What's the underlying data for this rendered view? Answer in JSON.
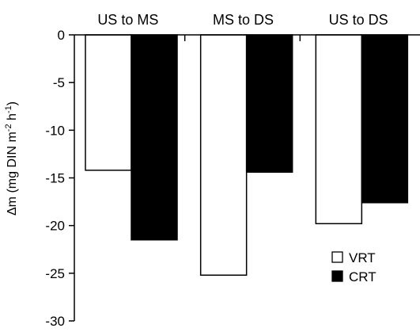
{
  "chart_data": {
    "type": "bar",
    "categories": [
      "US to MS",
      "MS to DS",
      "US to DS"
    ],
    "series": [
      {
        "name": "VRT",
        "values": [
          -14.2,
          -25.2,
          -19.8
        ],
        "color": "#ffffff"
      },
      {
        "name": "CRT",
        "values": [
          -21.5,
          -14.4,
          -17.6
        ],
        "color": "#000000"
      }
    ],
    "ylabel": {
      "base": "Δm (mg DIN m",
      "sup1": "-2",
      "mid": " h",
      "sup2": "-1",
      "end": ")"
    },
    "ylim": [
      -30,
      0
    ],
    "yticks": [
      0,
      -5,
      -10,
      -15,
      -20,
      -25,
      -30
    ],
    "category_axis_position": "top",
    "grid": false,
    "legend_position": "bottom-right"
  }
}
